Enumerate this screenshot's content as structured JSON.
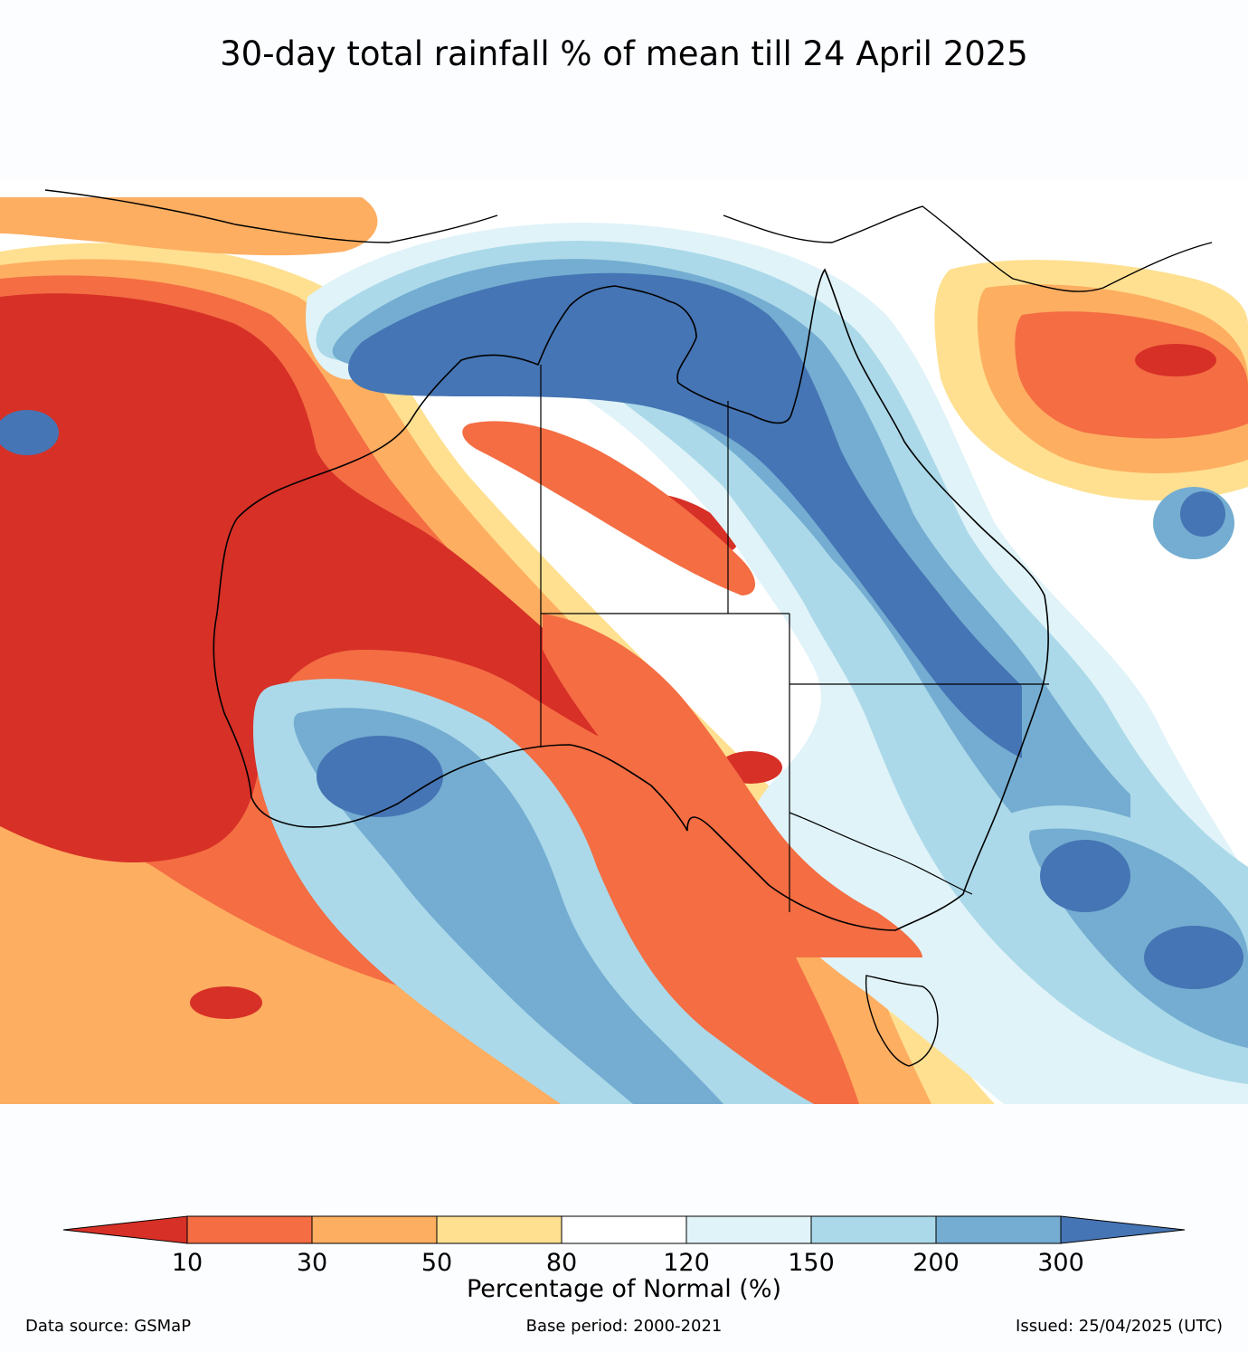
{
  "title": "30-day total rainfall % of mean till 24 April 2025",
  "colorbar": {
    "label": "Percentage of Normal (%)",
    "ticks": [
      "10",
      "30",
      "50",
      "80",
      "120",
      "150",
      "200",
      "300"
    ],
    "colors": [
      "#d73027",
      "#f46d43",
      "#fdae61",
      "#fee090",
      "#ffffff",
      "#e0f3f8",
      "#abd9e9",
      "#74add1",
      "#4575b4"
    ]
  },
  "footer": {
    "source": "Data source: GSMaP",
    "base": "Base period: 2000-2021",
    "issued": "Issued: 25/04/2025 (UTC)"
  }
}
